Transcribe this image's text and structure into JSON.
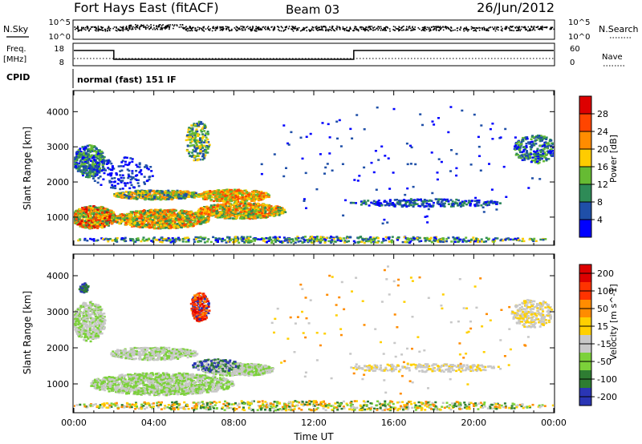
{
  "header": {
    "station": "Fort Hays East (fitACF)",
    "beam": "Beam 03",
    "date": "26/Jun/2012"
  },
  "panels": {
    "nsky": {
      "left_label": "N.Sky",
      "right_label": "N.Search",
      "ticks_left": [
        "10^5",
        "10^0"
      ],
      "ticks_right": [
        "10^5",
        "10^0"
      ]
    },
    "freq": {
      "left_label_line1": "Freq.",
      "left_label_line2": "[MHz]",
      "left_ticks": [
        "18",
        "8"
      ],
      "right_label": "Nave",
      "right_ticks": [
        "60",
        "0"
      ]
    },
    "cpid": {
      "label": "CPID",
      "text": "normal (fast) 151 IF"
    }
  },
  "colors": {
    "power": [
      "#0000ff",
      "#1f4fa8",
      "#2e8b57",
      "#66bb33",
      "#ffcc00",
      "#ff8c00",
      "#ff4500",
      "#dd0000"
    ],
    "velocity": [
      "#2a35b5",
      "#2e7d32",
      "#7cd13a",
      "#c8c8c8",
      "#ffd000",
      "#ff8c00",
      "#ff3300",
      "#dd0000"
    ]
  },
  "chart_data": [
    {
      "type": "heatmap",
      "title": "",
      "xlabel": "",
      "ylabel": "Slant Range [km]",
      "x_range_hours": [
        0,
        24
      ],
      "y_range_km": [
        200,
        4600
      ],
      "x_ticks": [],
      "y_ticks": [
        "1000",
        "2000",
        "3000",
        "4000"
      ],
      "colorbar": {
        "label": "Power [dB]",
        "ticks": [
          "4",
          "8",
          "12",
          "16",
          "20",
          "24",
          "28"
        ]
      }
    },
    {
      "type": "heatmap",
      "title": "",
      "xlabel": "Time UT",
      "ylabel": "Slant Range [km]",
      "x_range_hours": [
        0,
        24
      ],
      "y_range_km": [
        200,
        4600
      ],
      "x_ticks": [
        "00:00",
        "04:00",
        "08:00",
        "12:00",
        "16:00",
        "20:00",
        "00:00"
      ],
      "y_ticks": [
        "1000",
        "2000",
        "3000",
        "4000"
      ],
      "colorbar": {
        "label": "Velocity [m s^-1]",
        "ticks": [
          "200",
          "100",
          "50",
          "15",
          "-15",
          "-50",
          "-100",
          "-200"
        ]
      }
    }
  ]
}
